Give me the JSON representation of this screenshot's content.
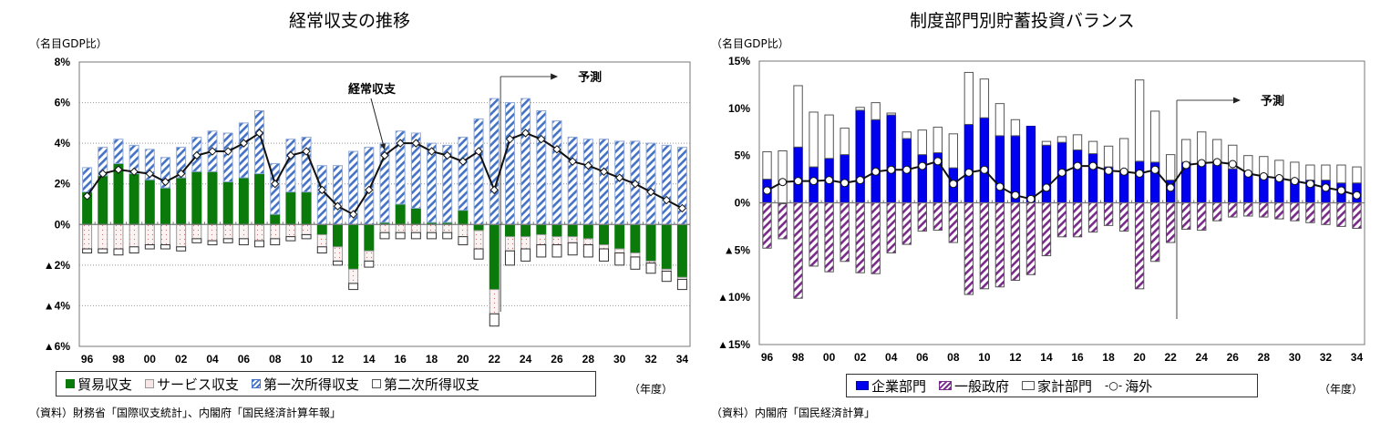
{
  "chart_data": [
    {
      "type": "bar",
      "title": "経常収支の推移",
      "ylabel": "（名目GDP比）",
      "xlabel": "（年度）",
      "ylim": [
        -6,
        8
      ],
      "yticks": [
        8,
        6,
        4,
        2,
        0,
        -2,
        -4,
        -6
      ],
      "ytick_labels": [
        "8%",
        "6%",
        "4%",
        "2%",
        "0%",
        "▲2%",
        "▲4%",
        "▲6%"
      ],
      "categories": [
        "96",
        "97",
        "98",
        "99",
        "00",
        "01",
        "02",
        "03",
        "04",
        "05",
        "06",
        "07",
        "08",
        "09",
        "10",
        "11",
        "12",
        "13",
        "14",
        "15",
        "16",
        "17",
        "18",
        "19",
        "20",
        "21",
        "22",
        "23",
        "24",
        "25",
        "26",
        "27",
        "28",
        "29",
        "30",
        "31",
        "32",
        "33",
        "34"
      ],
      "xtick_labels": [
        "96",
        "98",
        "00",
        "02",
        "04",
        "06",
        "08",
        "10",
        "12",
        "14",
        "16",
        "18",
        "20",
        "22",
        "24",
        "26",
        "28",
        "30",
        "32",
        "34"
      ],
      "series": [
        {
          "name": "貿易収支",
          "color": "#0a7a0a",
          "values": [
            1.6,
            2.4,
            3.0,
            2.5,
            2.2,
            1.8,
            2.3,
            2.6,
            2.6,
            2.1,
            2.3,
            2.5,
            0.5,
            1.6,
            1.6,
            -0.5,
            -1.1,
            -2.2,
            -1.3,
            0.1,
            1.0,
            0.8,
            0.1,
            0.1,
            0.7,
            -0.3,
            -3.2,
            -0.6,
            -0.6,
            -0.5,
            -0.6,
            -0.6,
            -0.7,
            -1.0,
            -1.2,
            -1.4,
            -1.8,
            -2.2,
            -2.6
          ]
        },
        {
          "name": "サービス収支",
          "color": "#f4e0e0",
          "values": [
            -1.2,
            -1.2,
            -1.2,
            -1.1,
            -1.0,
            -1.0,
            -1.1,
            -0.7,
            -0.8,
            -0.7,
            -0.7,
            -0.8,
            -0.7,
            -0.6,
            -0.5,
            -0.6,
            -0.7,
            -0.7,
            -0.5,
            -0.4,
            -0.4,
            -0.4,
            -0.4,
            -0.4,
            -0.6,
            -0.9,
            -1.2,
            -0.7,
            -0.6,
            -0.5,
            -0.4,
            -0.3,
            -0.3,
            -0.2,
            -0.2,
            -0.2,
            -0.1,
            -0.1,
            -0.1
          ]
        },
        {
          "name": "第一次所得収支",
          "color": "#4472c4",
          "values": [
            1.2,
            1.4,
            1.2,
            1.4,
            1.5,
            1.5,
            1.5,
            1.7,
            2.0,
            2.4,
            2.7,
            3.1,
            2.5,
            2.6,
            2.7,
            2.9,
            2.9,
            3.6,
            3.8,
            3.9,
            3.6,
            3.7,
            3.9,
            3.8,
            3.6,
            5.2,
            6.2,
            6.0,
            6.2,
            5.6,
            5.1,
            4.3,
            4.2,
            4.2,
            4.1,
            4.1,
            4.0,
            3.9,
            3.8
          ]
        },
        {
          "name": "第二次所得収支",
          "color": "#ffffff",
          "values": [
            -0.2,
            -0.2,
            -0.3,
            -0.3,
            -0.2,
            -0.2,
            -0.2,
            -0.2,
            -0.2,
            -0.2,
            -0.3,
            -0.3,
            -0.3,
            -0.2,
            -0.2,
            -0.3,
            -0.2,
            -0.3,
            -0.3,
            -0.3,
            -0.3,
            -0.3,
            -0.3,
            -0.3,
            -0.4,
            -0.5,
            -0.6,
            -0.7,
            -0.6,
            -0.6,
            -0.6,
            -0.6,
            -0.6,
            -0.6,
            -0.6,
            -0.6,
            -0.5,
            -0.5,
            -0.5
          ]
        }
      ],
      "line": {
        "name": "経常収支",
        "values": [
          1.4,
          2.5,
          2.7,
          2.6,
          2.5,
          2.1,
          2.5,
          3.4,
          3.6,
          3.6,
          4.0,
          4.5,
          2.0,
          3.4,
          3.6,
          1.7,
          0.9,
          0.5,
          1.7,
          3.4,
          4.0,
          4.0,
          3.6,
          3.4,
          3.1,
          3.6,
          1.7,
          4.2,
          4.5,
          4.2,
          3.7,
          3.1,
          2.9,
          2.6,
          2.3,
          2.0,
          1.6,
          1.2,
          0.8
        ]
      },
      "annotations": [
        {
          "text": "経常収支",
          "target": "15"
        },
        {
          "text": "予測",
          "from": "23"
        }
      ],
      "legend": "bottom",
      "grid": true,
      "source": "（資料）財務省「国際収支統計」、内閣府「国民経済計算年報」"
    },
    {
      "type": "bar",
      "title": "制度部門別貯蓄投資バランス",
      "ylabel": "（名目GDP比）",
      "xlabel": "（年度）",
      "ylim": [
        -15,
        15
      ],
      "yticks": [
        15,
        10,
        5,
        0,
        -5,
        -10,
        -15
      ],
      "ytick_labels": [
        "15%",
        "10%",
        "5%",
        "0%",
        "▲5%",
        "▲10%",
        "▲15%"
      ],
      "categories": [
        "96",
        "97",
        "98",
        "99",
        "00",
        "01",
        "02",
        "03",
        "04",
        "05",
        "06",
        "07",
        "08",
        "09",
        "10",
        "11",
        "12",
        "13",
        "14",
        "15",
        "16",
        "17",
        "18",
        "19",
        "20",
        "21",
        "22",
        "23",
        "24",
        "25",
        "26",
        "27",
        "28",
        "29",
        "30",
        "31",
        "32",
        "33",
        "34"
      ],
      "xtick_labels": [
        "96",
        "98",
        "00",
        "02",
        "04",
        "06",
        "08",
        "10",
        "12",
        "14",
        "16",
        "18",
        "20",
        "22",
        "24",
        "26",
        "28",
        "30",
        "32",
        "34"
      ],
      "series": [
        {
          "name": "企業部門",
          "color": "#0000ee",
          "values": [
            2.5,
            -0.1,
            5.9,
            3.8,
            4.7,
            5.1,
            9.8,
            8.8,
            9.3,
            6.8,
            5.1,
            5.3,
            3.7,
            8.3,
            9.0,
            7.1,
            7.1,
            8.1,
            6.1,
            6.4,
            5.6,
            5.2,
            3.8,
            3.2,
            4.4,
            4.3,
            2.4,
            4.3,
            4.3,
            4.1,
            3.6,
            3.2,
            2.9,
            2.7,
            2.5,
            2.4,
            2.4,
            2.1,
            2.1
          ]
        },
        {
          "name": "一般政府",
          "color": "#7a2a8a",
          "values": [
            -4.8,
            -3.7,
            -10.1,
            -6.7,
            -7.3,
            -6.2,
            -7.4,
            -7.5,
            -5.3,
            -4.4,
            -3.0,
            -2.9,
            -4.2,
            -9.7,
            -9.1,
            -8.9,
            -8.2,
            -7.6,
            -5.6,
            -3.6,
            -3.6,
            -3.1,
            -2.4,
            -3.0,
            -9.1,
            -6.2,
            -4.2,
            -2.8,
            -2.9,
            -1.9,
            -1.5,
            -1.4,
            -1.5,
            -1.7,
            -1.9,
            -2.1,
            -2.3,
            -2.5,
            -2.7
          ]
        },
        {
          "name": "家計部門",
          "color": "#ffffff",
          "values": [
            2.9,
            5.5,
            6.5,
            5.8,
            4.6,
            2.8,
            0.3,
            1.8,
            0.2,
            0.7,
            2.6,
            2.7,
            3.6,
            5.5,
            4.1,
            3.4,
            1.7,
            0.0,
            0.4,
            0.6,
            1.6,
            1.3,
            2.2,
            3.6,
            8.6,
            5.4,
            2.7,
            2.4,
            3.2,
            2.6,
            2.5,
            1.8,
            2.0,
            1.8,
            1.8,
            1.6,
            1.6,
            1.9,
            1.7
          ]
        }
      ],
      "line": {
        "name": "海外",
        "values": [
          1.3,
          2.2,
          2.3,
          2.3,
          2.4,
          2.1,
          2.4,
          3.3,
          3.5,
          3.5,
          3.9,
          4.4,
          2.0,
          3.2,
          3.5,
          1.7,
          0.8,
          0.4,
          1.6,
          3.2,
          3.9,
          3.9,
          3.4,
          3.3,
          3.1,
          3.5,
          1.6,
          4.0,
          4.2,
          4.3,
          4.1,
          3.1,
          2.8,
          2.6,
          2.3,
          2.0,
          1.6,
          1.3,
          0.8
        ]
      },
      "annotations": [
        {
          "text": "予測",
          "from": "23"
        }
      ],
      "legend": "bottom",
      "grid": false,
      "source": "（資料）内閣府「国民経済計算」"
    }
  ]
}
